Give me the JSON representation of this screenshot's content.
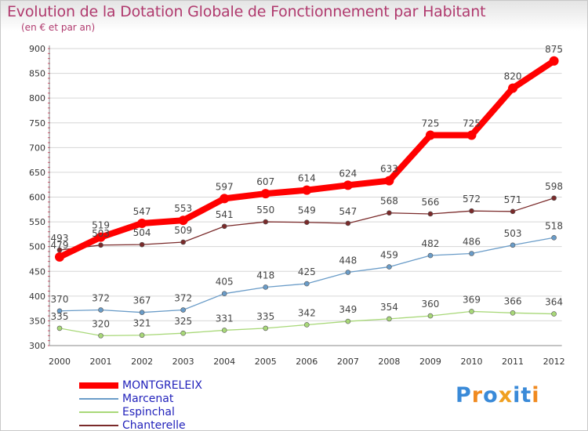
{
  "title": "Evolution de la Dotation Globale de Fonctionnement par Habitant",
  "subtitle": "(en € et par an)",
  "chart_data": {
    "type": "line",
    "title": "Evolution de la Dotation Globale de Fonctionnement par Habitant",
    "subtitle": "(en € et par an)",
    "categories": [
      "2000",
      "2001",
      "2002",
      "2003",
      "2004",
      "2005",
      "2006",
      "2007",
      "2008",
      "2009",
      "2010",
      "2011",
      "2012"
    ],
    "y_ticks": [
      "300",
      "350",
      "400",
      "450",
      "500",
      "550",
      "600",
      "650",
      "700",
      "750",
      "800",
      "850",
      "900"
    ],
    "ylim": [
      300,
      900
    ],
    "grid": "horizontal",
    "legend_position": "bottom-left",
    "series": [
      {
        "name": "MONTGRELEIX",
        "color": "#ff0000",
        "values": [
          479,
          519,
          547,
          553,
          597,
          607,
          614,
          624,
          633,
          725,
          725,
          820,
          875
        ]
      },
      {
        "name": "Marcenat",
        "color": "#6a9cc8",
        "values": [
          370,
          372,
          367,
          372,
          405,
          418,
          425,
          448,
          459,
          482,
          486,
          503,
          518
        ]
      },
      {
        "name": "Espinchal",
        "color": "#a8d878",
        "values": [
          335,
          320,
          321,
          325,
          331,
          335,
          342,
          349,
          354,
          360,
          369,
          366,
          364
        ]
      },
      {
        "name": "Chanterelle",
        "color": "#7a2a2a",
        "values": [
          493,
          503,
          504,
          509,
          541,
          550,
          549,
          547,
          568,
          566,
          572,
          571,
          598
        ]
      }
    ]
  },
  "logo": {
    "letters": [
      "P",
      "r",
      "o",
      "x",
      "i",
      "t",
      "i"
    ],
    "colors": [
      "#3a8ad8",
      "#f08a20",
      "#3a8ad8",
      "#f0a020",
      "#3a8ad8",
      "#3a8ad8",
      "#f08a20"
    ]
  }
}
